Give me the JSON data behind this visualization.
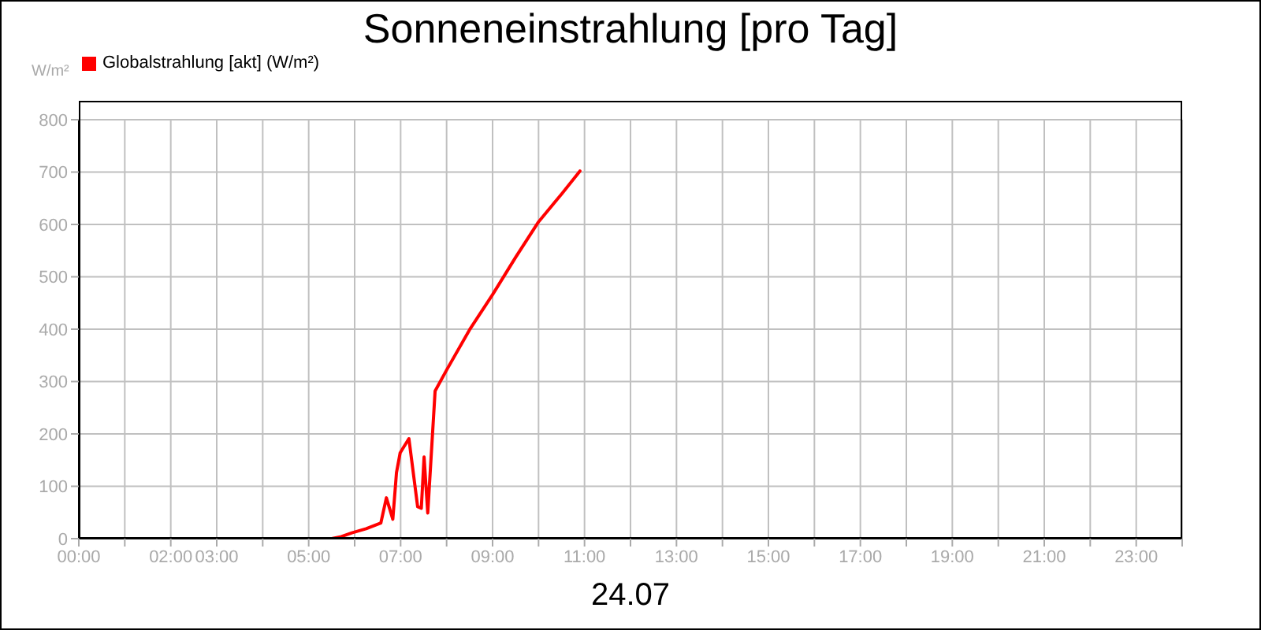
{
  "chart_data": {
    "type": "line",
    "title": "Sonneneinstrahlung [pro Tag]",
    "xlabel": "24.07",
    "ylabel": "W/m²",
    "x": [
      0,
      5.5,
      5.71,
      5.94,
      6.25,
      6.57,
      6.69,
      6.83,
      6.91,
      6.99,
      7.18,
      7.37,
      7.45,
      7.51,
      7.59,
      7.75,
      8.0,
      8.5,
      9.0,
      9.5,
      10.0,
      10.5,
      10.9
    ],
    "series": [
      {
        "name": "Globalstrahlung [akt] (W/m²)",
        "color": "#ff0000",
        "values": [
          0,
          0,
          4,
          11,
          19,
          30,
          78,
          37,
          126,
          164,
          191,
          61,
          58,
          156,
          49,
          282,
          322,
          399,
          466,
          537,
          605,
          658,
          702
        ]
      }
    ],
    "xlim": [
      0,
      24
    ],
    "xticks": [
      {
        "value": 0,
        "label": "00:00"
      },
      {
        "value": 1,
        "label": null
      },
      {
        "value": 2,
        "label": "02:00"
      },
      {
        "value": 3,
        "label": "03:00"
      },
      {
        "value": 4,
        "label": null
      },
      {
        "value": 5,
        "label": "05:00"
      },
      {
        "value": 6,
        "label": null
      },
      {
        "value": 7,
        "label": "07:00"
      },
      {
        "value": 8,
        "label": null
      },
      {
        "value": 9,
        "label": "09:00"
      },
      {
        "value": 10,
        "label": null
      },
      {
        "value": 11,
        "label": "11:00"
      },
      {
        "value": 12,
        "label": null
      },
      {
        "value": 13,
        "label": "13:00"
      },
      {
        "value": 14,
        "label": null
      },
      {
        "value": 15,
        "label": "15:00"
      },
      {
        "value": 16,
        "label": null
      },
      {
        "value": 17,
        "label": "17:00"
      },
      {
        "value": 18,
        "label": null
      },
      {
        "value": 19,
        "label": "19:00"
      },
      {
        "value": 20,
        "label": null
      },
      {
        "value": 21,
        "label": "21:00"
      },
      {
        "value": 22,
        "label": null
      },
      {
        "value": 23,
        "label": "23:00"
      },
      {
        "value": 24,
        "label": null
      }
    ],
    "ylim": [
      0,
      800
    ],
    "yticks": [
      0,
      100,
      200,
      300,
      400,
      500,
      600,
      700,
      800
    ],
    "grid": true,
    "legend": "top left",
    "marker": "none",
    "line_style": "solid"
  }
}
